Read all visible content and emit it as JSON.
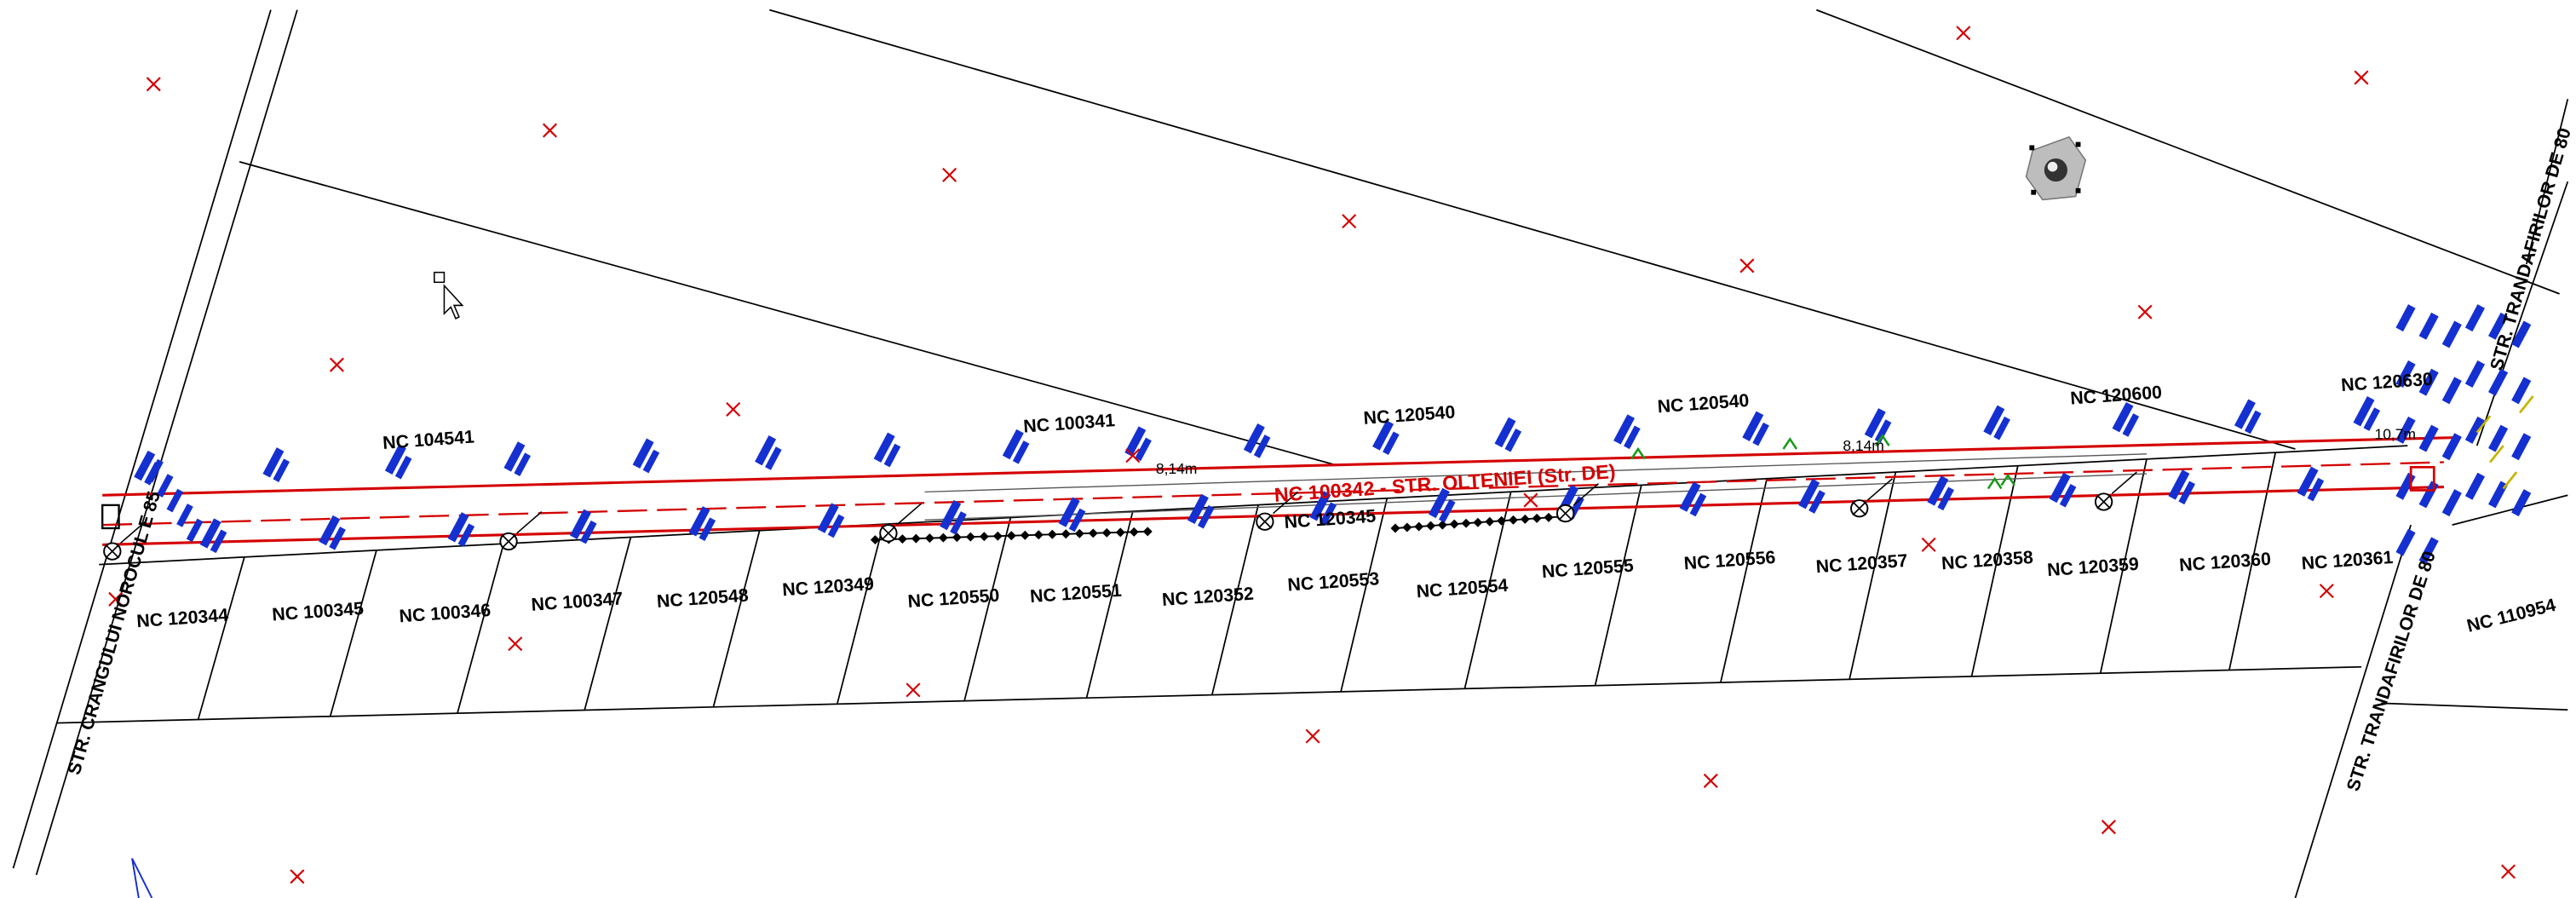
{
  "drawing": {
    "background": "#ffffff",
    "colors": {
      "boundary": "#000000",
      "utility_line": "#d40000",
      "annotation": "#1530d0",
      "marker": "#d40000",
      "accent_green": "#1a9a1a",
      "accent_yellow": "#c8b400"
    },
    "labels": {
      "utility": "NC 100342 - STR. OLTENIEI (Str. DE)",
      "road_left": "STR. CRANGULUI NOROCUL E 85",
      "road_right": "STR. TRANDAFIRILOR DE 80",
      "road_right_upper": "STR. TRANDAFIRILOR DE 80",
      "upper_parcels": [
        "NC 104541",
        "NC 100341",
        "NC 120540",
        "NC 120540",
        "NC 120600",
        "NC 120630"
      ],
      "lower_parcels": [
        "NC 120344",
        "NC 100345",
        "NC 100346",
        "NC 100347",
        "NC 120548",
        "NC 120349",
        "NC 120550",
        "NC 120551",
        "NC 120352",
        "NC 120553",
        "NC 120554",
        "NC 120555",
        "NC 120556",
        "NC 120357",
        "NC 120358",
        "NC 120359",
        "NC 120360",
        "NC 120361"
      ],
      "mid_parcel": "NC 120345",
      "corner_parcel": "NC 110954",
      "small_marks": [
        "8,14m",
        "8,14m",
        "10,7m"
      ]
    },
    "icons": {
      "view_cube": "navigation-cube-icon",
      "cursor": "mouse-pointer-icon",
      "cross_marker": "cross-marker-icon",
      "pole_symbol": "utility-pole-icon"
    }
  }
}
